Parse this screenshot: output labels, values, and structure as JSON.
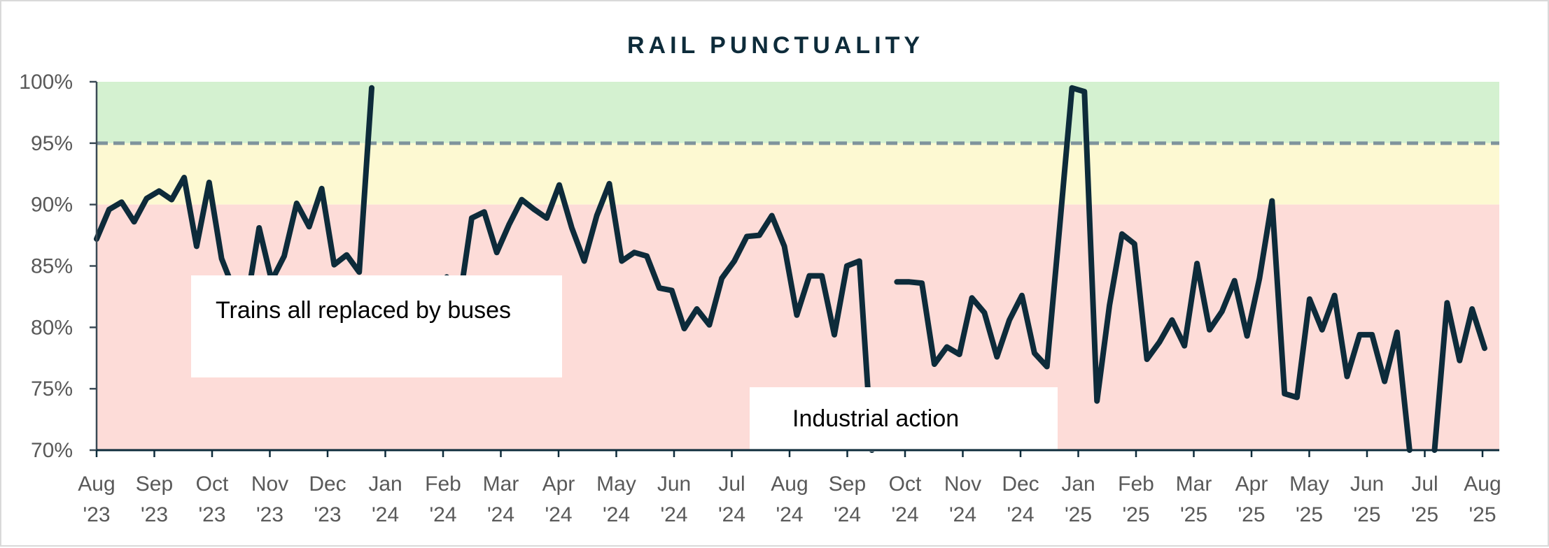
{
  "chart_data": {
    "type": "line",
    "title": "RAIL PUNCTUALITY",
    "xlabel": "",
    "ylabel": "",
    "ylim": [
      70,
      100
    ],
    "y_ticks": [
      "100%",
      "95%",
      "90%",
      "85%",
      "80%",
      "75%",
      "70%"
    ],
    "y_tick_values": [
      100,
      95,
      90,
      85,
      80,
      75,
      70
    ],
    "x_ticks": [
      {
        "month": "Aug",
        "year": "'23"
      },
      {
        "month": "Sep",
        "year": "'23"
      },
      {
        "month": "Oct",
        "year": "'23"
      },
      {
        "month": "Nov",
        "year": "'23"
      },
      {
        "month": "Dec",
        "year": "'23"
      },
      {
        "month": "Jan",
        "year": "'24"
      },
      {
        "month": "Feb",
        "year": "'24"
      },
      {
        "month": "Mar",
        "year": "'24"
      },
      {
        "month": "Apr",
        "year": "'24"
      },
      {
        "month": "May",
        "year": "'24"
      },
      {
        "month": "Jun",
        "year": "'24"
      },
      {
        "month": "Jul",
        "year": "'24"
      },
      {
        "month": "Aug",
        "year": "'24"
      },
      {
        "month": "Sep",
        "year": "'24"
      },
      {
        "month": "Oct",
        "year": "'24"
      },
      {
        "month": "Nov",
        "year": "'24"
      },
      {
        "month": "Dec",
        "year": "'24"
      },
      {
        "month": "Jan",
        "year": "'25"
      },
      {
        "month": "Feb",
        "year": "'25"
      },
      {
        "month": "Mar",
        "year": "'25"
      },
      {
        "month": "Apr",
        "year": "'25"
      },
      {
        "month": "May",
        "year": "'25"
      },
      {
        "month": "Jun",
        "year": "'25"
      },
      {
        "month": "Jul",
        "year": "'25"
      },
      {
        "month": "Aug",
        "year": "'25"
      }
    ],
    "bands": [
      {
        "from": 95,
        "to": 100,
        "color": "#d4f1d0"
      },
      {
        "from": 90,
        "to": 95,
        "color": "#fdf9d2"
      },
      {
        "from": 70,
        "to": 90,
        "color": "#fddcd8"
      }
    ],
    "reference_line": {
      "value": 95,
      "style": "dashed",
      "color": "#7f949c"
    },
    "grid": false,
    "series": [
      {
        "color": "#0d2b3a",
        "values": [
          87.2,
          89.6,
          90.2,
          88.6,
          90.5,
          91.1,
          90.4,
          92.2,
          86.6,
          91.8,
          85.6,
          83.0,
          82.0,
          88.1,
          83.8,
          85.8,
          90.1,
          88.2,
          91.3,
          85.1,
          85.9,
          84.5,
          99.5,
          null,
          null,
          null,
          null,
          null,
          84.1,
          82.0,
          88.9,
          89.4,
          86.1,
          88.4,
          90.4,
          89.6,
          88.9,
          91.6,
          88.1,
          85.4,
          89.1,
          91.7,
          85.4,
          86.1,
          85.8,
          83.2,
          83.0,
          79.9,
          81.5,
          80.2,
          84.0,
          85.4,
          87.4,
          87.5,
          89.1,
          86.6,
          81.0,
          84.2,
          84.2,
          79.4,
          85.0,
          85.4,
          70.0,
          null,
          83.7,
          83.7,
          83.6,
          77.0,
          78.4,
          77.8,
          82.4,
          81.2,
          77.6,
          80.6,
          82.6,
          77.9,
          76.8,
          88.0,
          99.5,
          99.2,
          74.0,
          81.8,
          87.6,
          86.8,
          77.4,
          78.8,
          80.6,
          78.5,
          85.2,
          79.8,
          81.3,
          83.8,
          79.3,
          84.0,
          90.3,
          74.6,
          74.3,
          82.3,
          79.8,
          82.6,
          76.0,
          79.4,
          79.4,
          75.6,
          79.6,
          70.0,
          null,
          70.0,
          82.0,
          77.3,
          81.5,
          78.3
        ]
      }
    ],
    "annotations": [
      {
        "text": "Trains all replaced by buses"
      },
      {
        "text": "Industrial action"
      }
    ]
  }
}
